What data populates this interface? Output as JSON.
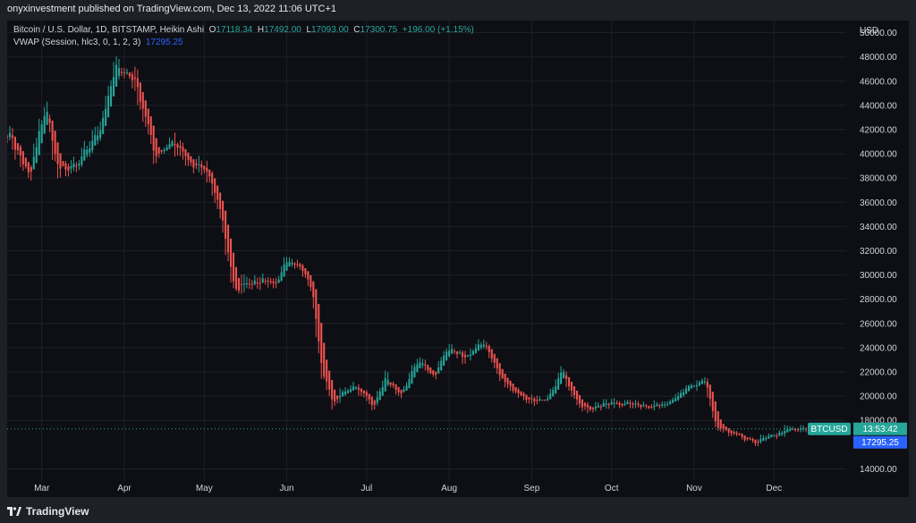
{
  "header": {
    "published_by": "onyxinvestment published on TradingView.com, Dec 13, 2022 11:06 UTC+1"
  },
  "legend": {
    "symbol": "Bitcoin / U.S. Dollar, 1D, BITSTAMP, Heikin Ashi",
    "o_label": "O",
    "o_value": "17118.34",
    "h_label": "H",
    "h_value": "17492.00",
    "l_label": "L",
    "l_value": "17093.00",
    "c_label": "C",
    "c_value": "17300.75",
    "change": "+196.00 (+1.15%)",
    "indicator": "VWAP (Session, hlc3, 0, 1, 2, 3)",
    "indicator_value": "17295.25"
  },
  "price_axis": {
    "currency": "USD",
    "ticks": [
      "50000.00",
      "48000.00",
      "46000.00",
      "44000.00",
      "42000.00",
      "40000.00",
      "38000.00",
      "36000.00",
      "34000.00",
      "32000.00",
      "30000.00",
      "28000.00",
      "26000.00",
      "24000.00",
      "22000.00",
      "20000.00",
      "18000.00",
      "14000.00"
    ]
  },
  "price_tags": {
    "symbol": "BTCUSD",
    "countdown": "13:53:42",
    "vwap": "17295.25"
  },
  "footer": {
    "logo_text": "TradingView"
  },
  "colors": {
    "up": "#26a69a",
    "down": "#ef5350",
    "vwap": "#2962ff",
    "background": "#0e0f14",
    "grid": "#1e2029"
  },
  "chart_data": {
    "type": "candlestick",
    "style": "Heikin Ashi",
    "title": "Bitcoin / U.S. Dollar, 1D, BITSTAMP, Heikin Ashi",
    "x_start": "2022-02-16",
    "x_end": "2022-12-13",
    "x_ticks": [
      "Mar",
      "Apr",
      "May",
      "Jun",
      "Jul",
      "Aug",
      "Sep",
      "Oct",
      "Nov",
      "Dec"
    ],
    "y_range": [
      13000,
      51000
    ],
    "y_label": "USD",
    "last_price": 17300.75,
    "grid": true,
    "trend": [
      {
        "date": "2022-02-16",
        "close": 42000
      },
      {
        "date": "2022-02-24",
        "close": 38000
      },
      {
        "date": "2022-03-02",
        "close": 44000
      },
      {
        "date": "2022-03-07",
        "close": 38500
      },
      {
        "date": "2022-03-14",
        "close": 39000
      },
      {
        "date": "2022-03-22",
        "close": 42000
      },
      {
        "date": "2022-03-29",
        "close": 47300
      },
      {
        "date": "2022-04-05",
        "close": 46000
      },
      {
        "date": "2022-04-12",
        "close": 40000
      },
      {
        "date": "2022-04-19",
        "close": 41000
      },
      {
        "date": "2022-04-26",
        "close": 39000
      },
      {
        "date": "2022-05-02",
        "close": 38500
      },
      {
        "date": "2022-05-06",
        "close": 36000
      },
      {
        "date": "2022-05-12",
        "close": 29000
      },
      {
        "date": "2022-05-20",
        "close": 29500
      },
      {
        "date": "2022-05-27",
        "close": 29000
      },
      {
        "date": "2022-05-31",
        "close": 31500
      },
      {
        "date": "2022-06-06",
        "close": 30500
      },
      {
        "date": "2022-06-10",
        "close": 29000
      },
      {
        "date": "2022-06-14",
        "close": 22000
      },
      {
        "date": "2022-06-18",
        "close": 19500
      },
      {
        "date": "2022-06-26",
        "close": 21000
      },
      {
        "date": "2022-07-03",
        "close": 19300
      },
      {
        "date": "2022-07-08",
        "close": 21500
      },
      {
        "date": "2022-07-13",
        "close": 19800
      },
      {
        "date": "2022-07-20",
        "close": 23000
      },
      {
        "date": "2022-07-26",
        "close": 21500
      },
      {
        "date": "2022-07-30",
        "close": 23800
      },
      {
        "date": "2022-08-06",
        "close": 23200
      },
      {
        "date": "2022-08-14",
        "close": 24400
      },
      {
        "date": "2022-08-20",
        "close": 21500
      },
      {
        "date": "2022-08-28",
        "close": 20000
      },
      {
        "date": "2022-09-06",
        "close": 19400
      },
      {
        "date": "2022-09-12",
        "close": 22000
      },
      {
        "date": "2022-09-20",
        "close": 19000
      },
      {
        "date": "2022-10-01",
        "close": 19400
      },
      {
        "date": "2022-10-10",
        "close": 19300
      },
      {
        "date": "2022-10-20",
        "close": 19200
      },
      {
        "date": "2022-10-27",
        "close": 20500
      },
      {
        "date": "2022-11-05",
        "close": 21100
      },
      {
        "date": "2022-11-09",
        "close": 17500
      },
      {
        "date": "2022-11-15",
        "close": 16800
      },
      {
        "date": "2022-11-22",
        "close": 16200
      },
      {
        "date": "2022-11-28",
        "close": 16500
      },
      {
        "date": "2022-12-04",
        "close": 17100
      },
      {
        "date": "2022-12-13",
        "close": 17300
      }
    ]
  }
}
